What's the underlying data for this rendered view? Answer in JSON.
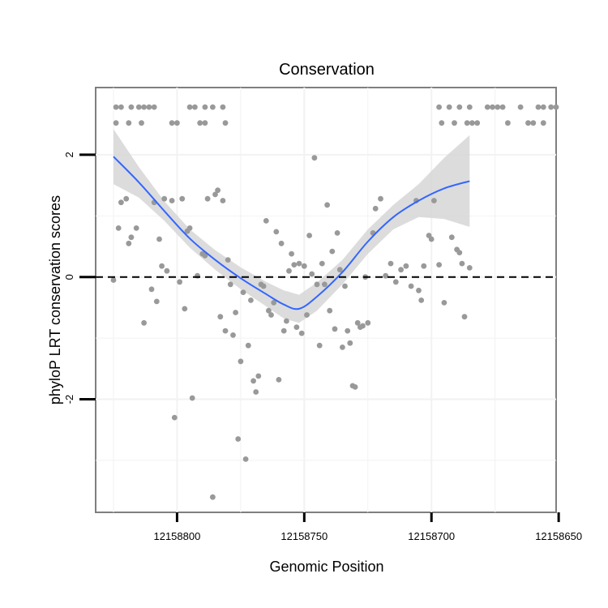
{
  "chart_data": {
    "type": "scatter",
    "title": "Conservation",
    "xlabel": "Genomic Position",
    "ylabel": "phyloP LRT conservation scores",
    "x_reversed": true,
    "xlim": [
      12158832,
      12158651
    ],
    "ylim": [
      -3.85,
      3.1
    ],
    "x_ticks": [
      12158800,
      12158750,
      12158700,
      12158650
    ],
    "y_ticks": [
      -2,
      0,
      2
    ],
    "grid": true,
    "reference_line": {
      "y": 0,
      "style": "dashed"
    },
    "colors": {
      "points": "#999999",
      "smooth": "#3366ff",
      "band": "#d6d6d6",
      "reference": "#000000"
    },
    "points": [
      {
        "x": 12158824,
        "y": 2.78
      },
      {
        "x": 12158822,
        "y": 2.78
      },
      {
        "x": 12158818,
        "y": 2.78
      },
      {
        "x": 12158815,
        "y": 2.78
      },
      {
        "x": 12158813,
        "y": 2.78
      },
      {
        "x": 12158811,
        "y": 2.78
      },
      {
        "x": 12158809,
        "y": 2.78
      },
      {
        "x": 12158795,
        "y": 2.78
      },
      {
        "x": 12158793,
        "y": 2.78
      },
      {
        "x": 12158789,
        "y": 2.78
      },
      {
        "x": 12158786,
        "y": 2.78
      },
      {
        "x": 12158782,
        "y": 2.78
      },
      {
        "x": 12158697,
        "y": 2.78
      },
      {
        "x": 12158693,
        "y": 2.78
      },
      {
        "x": 12158689,
        "y": 2.78
      },
      {
        "x": 12158685,
        "y": 2.78
      },
      {
        "x": 12158678,
        "y": 2.78
      },
      {
        "x": 12158676,
        "y": 2.78
      },
      {
        "x": 12158674,
        "y": 2.78
      },
      {
        "x": 12158672,
        "y": 2.78
      },
      {
        "x": 12158665,
        "y": 2.78
      },
      {
        "x": 12158658,
        "y": 2.78
      },
      {
        "x": 12158656,
        "y": 2.78
      },
      {
        "x": 12158653,
        "y": 2.78
      },
      {
        "x": 12158651,
        "y": 2.78
      },
      {
        "x": 12158824,
        "y": 2.52
      },
      {
        "x": 12158819,
        "y": 2.52
      },
      {
        "x": 12158814,
        "y": 2.52
      },
      {
        "x": 12158802,
        "y": 2.52
      },
      {
        "x": 12158800,
        "y": 2.52
      },
      {
        "x": 12158791,
        "y": 2.52
      },
      {
        "x": 12158789,
        "y": 2.52
      },
      {
        "x": 12158781,
        "y": 2.52
      },
      {
        "x": 12158696,
        "y": 2.52
      },
      {
        "x": 12158691,
        "y": 2.52
      },
      {
        "x": 12158686,
        "y": 2.52
      },
      {
        "x": 12158684,
        "y": 2.52
      },
      {
        "x": 12158682,
        "y": 2.52
      },
      {
        "x": 12158670,
        "y": 2.52
      },
      {
        "x": 12158662,
        "y": 2.52
      },
      {
        "x": 12158660,
        "y": 2.52
      },
      {
        "x": 12158656,
        "y": 2.52
      },
      {
        "x": 12158825,
        "y": -0.05
      },
      {
        "x": 12158823,
        "y": 0.8
      },
      {
        "x": 12158822,
        "y": 1.22
      },
      {
        "x": 12158820,
        "y": 1.28
      },
      {
        "x": 12158819,
        "y": 0.55
      },
      {
        "x": 12158818,
        "y": 0.65
      },
      {
        "x": 12158816,
        "y": 0.8
      },
      {
        "x": 12158813,
        "y": -0.75
      },
      {
        "x": 12158810,
        "y": -0.2
      },
      {
        "x": 12158809,
        "y": 1.22
      },
      {
        "x": 12158808,
        "y": -0.4
      },
      {
        "x": 12158807,
        "y": 0.62
      },
      {
        "x": 12158806,
        "y": 0.18
      },
      {
        "x": 12158805,
        "y": 1.28
      },
      {
        "x": 12158804,
        "y": 0.1
      },
      {
        "x": 12158802,
        "y": 1.25
      },
      {
        "x": 12158801,
        "y": -2.3
      },
      {
        "x": 12158799,
        "y": -0.08
      },
      {
        "x": 12158798,
        "y": 1.28
      },
      {
        "x": 12158797,
        "y": -0.52
      },
      {
        "x": 12158796,
        "y": 0.75
      },
      {
        "x": 12158795,
        "y": 0.8
      },
      {
        "x": 12158794,
        "y": -1.98
      },
      {
        "x": 12158792,
        "y": 0.02
      },
      {
        "x": 12158790,
        "y": 0.38
      },
      {
        "x": 12158789,
        "y": 0.35
      },
      {
        "x": 12158788,
        "y": 1.28
      },
      {
        "x": 12158786,
        "y": -3.6
      },
      {
        "x": 12158785,
        "y": 1.35
      },
      {
        "x": 12158784,
        "y": 1.42
      },
      {
        "x": 12158783,
        "y": -0.65
      },
      {
        "x": 12158782,
        "y": 1.25
      },
      {
        "x": 12158781,
        "y": -0.88
      },
      {
        "x": 12158780,
        "y": 0.28
      },
      {
        "x": 12158779,
        "y": -0.12
      },
      {
        "x": 12158778,
        "y": -0.95
      },
      {
        "x": 12158777,
        "y": -0.58
      },
      {
        "x": 12158776,
        "y": -2.65
      },
      {
        "x": 12158775,
        "y": -1.38
      },
      {
        "x": 12158774,
        "y": -0.25
      },
      {
        "x": 12158773,
        "y": -2.98
      },
      {
        "x": 12158772,
        "y": -1.12
      },
      {
        "x": 12158771,
        "y": -0.38
      },
      {
        "x": 12158770,
        "y": -1.7
      },
      {
        "x": 12158769,
        "y": -1.88
      },
      {
        "x": 12158768,
        "y": -1.62
      },
      {
        "x": 12158767,
        "y": -0.12
      },
      {
        "x": 12158766,
        "y": -0.15
      },
      {
        "x": 12158765,
        "y": 0.92
      },
      {
        "x": 12158764,
        "y": -0.55
      },
      {
        "x": 12158763,
        "y": -0.62
      },
      {
        "x": 12158762,
        "y": -0.42
      },
      {
        "x": 12158761,
        "y": 0.74
      },
      {
        "x": 12158760,
        "y": -1.68
      },
      {
        "x": 12158759,
        "y": 0.55
      },
      {
        "x": 12158758,
        "y": -0.88
      },
      {
        "x": 12158757,
        "y": -0.72
      },
      {
        "x": 12158756,
        "y": 0.1
      },
      {
        "x": 12158755,
        "y": 0.38
      },
      {
        "x": 12158754,
        "y": 0.2
      },
      {
        "x": 12158753,
        "y": -0.82
      },
      {
        "x": 12158752,
        "y": 0.22
      },
      {
        "x": 12158751,
        "y": -0.92
      },
      {
        "x": 12158750,
        "y": 0.18
      },
      {
        "x": 12158749,
        "y": -0.62
      },
      {
        "x": 12158748,
        "y": 0.68
      },
      {
        "x": 12158747,
        "y": 0.05
      },
      {
        "x": 12158746,
        "y": 1.95
      },
      {
        "x": 12158745,
        "y": -0.12
      },
      {
        "x": 12158744,
        "y": -1.12
      },
      {
        "x": 12158743,
        "y": 0.22
      },
      {
        "x": 12158742,
        "y": -0.12
      },
      {
        "x": 12158741,
        "y": 1.18
      },
      {
        "x": 12158740,
        "y": -0.55
      },
      {
        "x": 12158739,
        "y": 0.42
      },
      {
        "x": 12158738,
        "y": -0.85
      },
      {
        "x": 12158737,
        "y": 0.72
      },
      {
        "x": 12158736,
        "y": 0.12
      },
      {
        "x": 12158735,
        "y": -1.15
      },
      {
        "x": 12158734,
        "y": -0.15
      },
      {
        "x": 12158733,
        "y": -0.88
      },
      {
        "x": 12158732,
        "y": -1.08
      },
      {
        "x": 12158731,
        "y": -1.78
      },
      {
        "x": 12158730,
        "y": -1.8
      },
      {
        "x": 12158729,
        "y": -0.75
      },
      {
        "x": 12158728,
        "y": -0.82
      },
      {
        "x": 12158727,
        "y": -0.8
      },
      {
        "x": 12158726,
        "y": 0.0
      },
      {
        "x": 12158725,
        "y": -0.75
      },
      {
        "x": 12158723,
        "y": 0.72
      },
      {
        "x": 12158722,
        "y": 1.12
      },
      {
        "x": 12158720,
        "y": 1.28
      },
      {
        "x": 12158718,
        "y": 0.02
      },
      {
        "x": 12158716,
        "y": 0.22
      },
      {
        "x": 12158714,
        "y": -0.08
      },
      {
        "x": 12158712,
        "y": 0.12
      },
      {
        "x": 12158710,
        "y": 0.18
      },
      {
        "x": 12158708,
        "y": -0.15
      },
      {
        "x": 12158706,
        "y": 1.25
      },
      {
        "x": 12158705,
        "y": -0.22
      },
      {
        "x": 12158704,
        "y": -0.38
      },
      {
        "x": 12158703,
        "y": 0.18
      },
      {
        "x": 12158701,
        "y": 0.68
      },
      {
        "x": 12158700,
        "y": 0.62
      },
      {
        "x": 12158699,
        "y": 1.25
      },
      {
        "x": 12158697,
        "y": 0.2
      },
      {
        "x": 12158695,
        "y": -0.42
      },
      {
        "x": 12158692,
        "y": 0.65
      },
      {
        "x": 12158690,
        "y": 0.45
      },
      {
        "x": 12158689,
        "y": 0.4
      },
      {
        "x": 12158688,
        "y": 0.22
      },
      {
        "x": 12158687,
        "y": -0.65
      },
      {
        "x": 12158685,
        "y": 0.15
      }
    ],
    "smooth": {
      "x": [
        12158825,
        12158815,
        12158805,
        12158795,
        12158785,
        12158775,
        12158765,
        12158758,
        12158752,
        12158745,
        12158735,
        12158725,
        12158715,
        12158705,
        12158695,
        12158685
      ],
      "y": [
        1.97,
        1.55,
        1.08,
        0.63,
        0.28,
        -0.02,
        -0.28,
        -0.45,
        -0.52,
        -0.32,
        0.08,
        0.58,
        0.98,
        1.25,
        1.45,
        1.57
      ],
      "lower": [
        1.52,
        1.3,
        0.92,
        0.48,
        0.12,
        -0.2,
        -0.48,
        -0.68,
        -0.75,
        -0.55,
        -0.12,
        0.38,
        0.78,
        0.98,
        0.95,
        0.82
      ],
      "upper": [
        2.42,
        1.8,
        1.24,
        0.78,
        0.44,
        0.16,
        -0.08,
        -0.22,
        -0.29,
        -0.09,
        0.28,
        0.78,
        1.18,
        1.52,
        1.95,
        2.32
      ]
    }
  }
}
